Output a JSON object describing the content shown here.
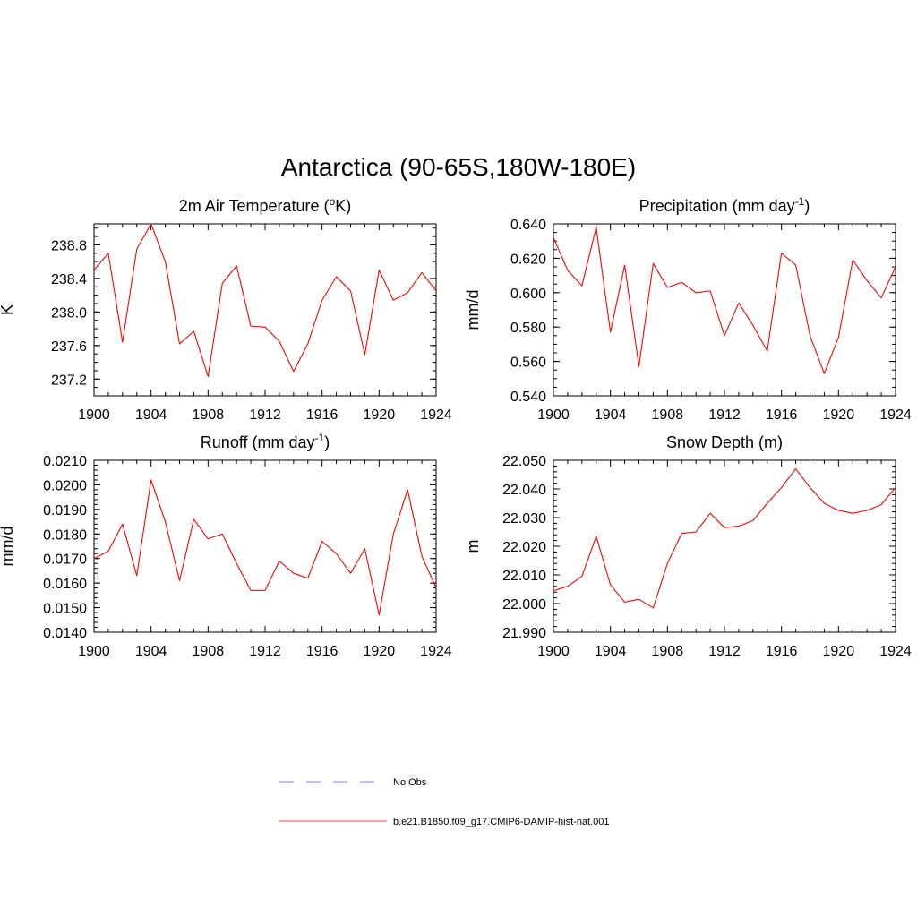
{
  "title": "Antarctica (90-65S,180W-180E)",
  "legend": {
    "items": [
      {
        "label": "No Obs",
        "color": "#9999ff",
        "style": "dashed"
      },
      {
        "label": "b.e21.B1850.f09_g17.CMIP6-DAMIP-hist-nat.001",
        "color": "#ff3333",
        "style": "solid"
      }
    ]
  },
  "chart_data": [
    {
      "type": "line",
      "title_parts": [
        "2m Air Temperature (",
        "o",
        "K)"
      ],
      "title_sup_index": 1,
      "ylabel": "K",
      "xlim": [
        1900,
        1924
      ],
      "ylim": [
        237.0,
        239.05
      ],
      "xticks": [
        1900,
        1904,
        1908,
        1912,
        1916,
        1920,
        1924
      ],
      "xtick_labels": [
        "1900",
        "1904",
        "1908",
        "1912",
        "1916",
        "1920",
        "1924"
      ],
      "yticks": [
        237.2,
        237.6,
        238.0,
        238.4,
        238.8
      ],
      "ytick_labels": [
        "237.2",
        "237.6",
        "238.0",
        "238.4",
        "238.8"
      ],
      "ystep_minor": 0.1,
      "series": [
        {
          "color": "#ff0000",
          "x": [
            1900,
            1901,
            1902,
            1903,
            1904,
            1905,
            1906,
            1907,
            1908,
            1909,
            1910,
            1911,
            1912,
            1913,
            1914,
            1915,
            1916,
            1917,
            1918,
            1919,
            1920,
            1921,
            1922,
            1923,
            1924
          ],
          "values": [
            238.5,
            238.7,
            237.64,
            238.75,
            239.05,
            238.6,
            237.62,
            237.77,
            237.23,
            238.34,
            238.55,
            237.83,
            237.82,
            237.65,
            237.29,
            237.62,
            238.14,
            238.42,
            238.25,
            237.49,
            238.5,
            238.14,
            238.23,
            238.47,
            238.25
          ]
        }
      ]
    },
    {
      "type": "line",
      "title_parts": [
        "Precipitation (mm day",
        "-1",
        ")"
      ],
      "title_sup_index": 1,
      "ylabel": "mm/d",
      "xlim": [
        1900,
        1924
      ],
      "ylim": [
        0.54,
        0.64
      ],
      "xticks": [
        1900,
        1904,
        1908,
        1912,
        1916,
        1920,
        1924
      ],
      "xtick_labels": [
        "1900",
        "1904",
        "1908",
        "1912",
        "1916",
        "1920",
        "1924"
      ],
      "yticks": [
        0.54,
        0.56,
        0.58,
        0.6,
        0.62,
        0.64
      ],
      "ytick_labels": [
        "0.540",
        "0.560",
        "0.580",
        "0.600",
        "0.620",
        "0.640"
      ],
      "ystep_minor": 0.005,
      "series": [
        {
          "color": "#ff0000",
          "x": [
            1900,
            1901,
            1902,
            1903,
            1904,
            1905,
            1906,
            1907,
            1908,
            1909,
            1910,
            1911,
            1912,
            1913,
            1914,
            1915,
            1916,
            1917,
            1918,
            1919,
            1920,
            1921,
            1922,
            1923,
            1924
          ],
          "values": [
            0.632,
            0.613,
            0.604,
            0.638,
            0.577,
            0.616,
            0.557,
            0.617,
            0.603,
            0.606,
            0.6,
            0.601,
            0.575,
            0.594,
            0.581,
            0.566,
            0.623,
            0.616,
            0.575,
            0.553,
            0.574,
            0.619,
            0.607,
            0.597,
            0.615
          ]
        }
      ]
    },
    {
      "type": "line",
      "title_parts": [
        "Runoff (mm day",
        "-1",
        ")"
      ],
      "title_sup_index": 1,
      "ylabel": "mm/d",
      "xlim": [
        1900,
        1924
      ],
      "ylim": [
        0.014,
        0.021
      ],
      "xticks": [
        1900,
        1904,
        1908,
        1912,
        1916,
        1920,
        1924
      ],
      "xtick_labels": [
        "1900",
        "1904",
        "1908",
        "1912",
        "1916",
        "1920",
        "1924"
      ],
      "yticks": [
        0.014,
        0.015,
        0.016,
        0.017,
        0.018,
        0.019,
        0.02,
        0.021
      ],
      "ytick_labels": [
        "0.0140",
        "0.0150",
        "0.0160",
        "0.0170",
        "0.0180",
        "0.0190",
        "0.0200",
        "0.0210"
      ],
      "ystep_minor": 0.0002,
      "series": [
        {
          "color": "#ff0000",
          "x": [
            1900,
            1901,
            1902,
            1903,
            1904,
            1905,
            1906,
            1907,
            1908,
            1909,
            1910,
            1911,
            1912,
            1913,
            1914,
            1915,
            1916,
            1917,
            1918,
            1919,
            1920,
            1921,
            1922,
            1923,
            1924
          ],
          "values": [
            0.017,
            0.0173,
            0.0184,
            0.0163,
            0.0202,
            0.0185,
            0.0161,
            0.0186,
            0.0178,
            0.018,
            0.0168,
            0.0157,
            0.0157,
            0.0169,
            0.0164,
            0.0162,
            0.0177,
            0.0172,
            0.0164,
            0.0174,
            0.0147,
            0.018,
            0.0198,
            0.0171,
            0.0158
          ]
        }
      ]
    },
    {
      "type": "line",
      "title_parts": [
        "Snow Depth (m)"
      ],
      "title_sup_index": -1,
      "ylabel": "m",
      "xlim": [
        1900,
        1924
      ],
      "ylim": [
        21.99,
        22.05
      ],
      "xticks": [
        1900,
        1904,
        1908,
        1912,
        1916,
        1920,
        1924
      ],
      "xtick_labels": [
        "1900",
        "1904",
        "1908",
        "1912",
        "1916",
        "1920",
        "1924"
      ],
      "yticks": [
        21.99,
        22.0,
        22.01,
        22.02,
        22.03,
        22.04,
        22.05
      ],
      "ytick_labels": [
        "21.990",
        "22.000",
        "22.010",
        "22.020",
        "22.030",
        "22.040",
        "22.050"
      ],
      "ystep_minor": 0.002,
      "series": [
        {
          "color": "#ff0000",
          "x": [
            1900,
            1901,
            1902,
            1903,
            1904,
            1905,
            1906,
            1907,
            1908,
            1909,
            1910,
            1911,
            1912,
            1913,
            1914,
            1915,
            1916,
            1917,
            1918,
            1919,
            1920,
            1921,
            1922,
            1923,
            1924
          ],
          "values": [
            22.0045,
            22.006,
            22.0095,
            22.0235,
            22.0065,
            22.0005,
            22.0015,
            21.9985,
            22.014,
            22.0245,
            22.025,
            22.0315,
            22.0265,
            22.027,
            22.029,
            22.035,
            22.0405,
            22.047,
            22.0405,
            22.035,
            22.0325,
            22.0315,
            22.0325,
            22.0345,
            22.0405
          ]
        }
      ]
    }
  ]
}
